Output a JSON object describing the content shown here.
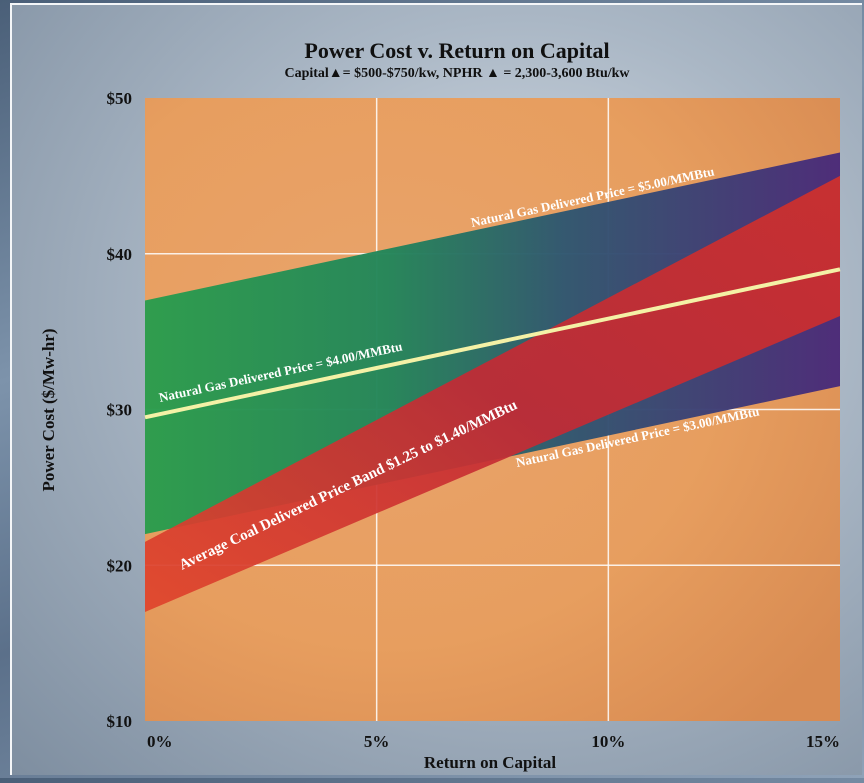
{
  "chart_data": {
    "type": "area",
    "title": "Power Cost v. Return on Capital",
    "subtitle": "Capital▲= $500-$750/kw, NPHR ▲ = 2,300-3,600 Btu/kw",
    "xlabel": "Return on Capital",
    "ylabel": "Power Cost ($/Mw-hr)",
    "xlim": [
      0,
      15
    ],
    "ylim": [
      10,
      50
    ],
    "x_ticks": [
      {
        "value": 0,
        "label": "0%"
      },
      {
        "value": 5,
        "label": "5%"
      },
      {
        "value": 10,
        "label": "10%"
      },
      {
        "value": 15,
        "label": "15%"
      }
    ],
    "y_ticks": [
      {
        "value": 10,
        "label": "$10"
      },
      {
        "value": 20,
        "label": "$20"
      },
      {
        "value": 30,
        "label": "$30"
      },
      {
        "value": 40,
        "label": "$40"
      },
      {
        "value": 50,
        "label": "$50"
      }
    ],
    "grid": true,
    "gas_band": {
      "x": [
        0,
        15
      ],
      "upper": [
        37,
        46.5
      ],
      "lower": [
        22,
        31.5
      ]
    },
    "coal_band": {
      "x": [
        0,
        15
      ],
      "upper": [
        21.5,
        45
      ],
      "lower": [
        17,
        36
      ]
    },
    "gas_line_4": {
      "x": [
        0,
        15
      ],
      "y": [
        29.5,
        39
      ]
    },
    "annotations": {
      "gas_5": "Natural Gas Delivered Price = $5.00/MMBtu",
      "gas_4": "Natural Gas Delivered Price = $4.00/MMBtu",
      "gas_3": "Natural Gas Delivered Price = $3.00/MMBtu",
      "coal": "Average Coal Delivered Price Band $1.25 to $1.40/MMBtu"
    },
    "colors": {
      "background": "#e8a066",
      "gas_band_left": "#2aa14e",
      "gas_band_right": "#4a2a78",
      "coal_band": "#d23a2a",
      "line_4": "#f4f1a6",
      "grid": "#ffffff"
    }
  }
}
